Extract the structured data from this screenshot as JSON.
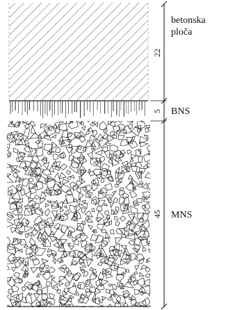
{
  "layers": [
    {
      "id": "slab",
      "label_lines": [
        "betonska",
        "ploča"
      ],
      "thickness": "22"
    },
    {
      "id": "bns",
      "label_lines": [
        "BNS"
      ],
      "thickness": "5"
    },
    {
      "id": "mns",
      "label_lines": [
        "MNS"
      ],
      "thickness": "45"
    }
  ],
  "colors": {
    "ink": "#111111",
    "background": "#ffffff"
  }
}
